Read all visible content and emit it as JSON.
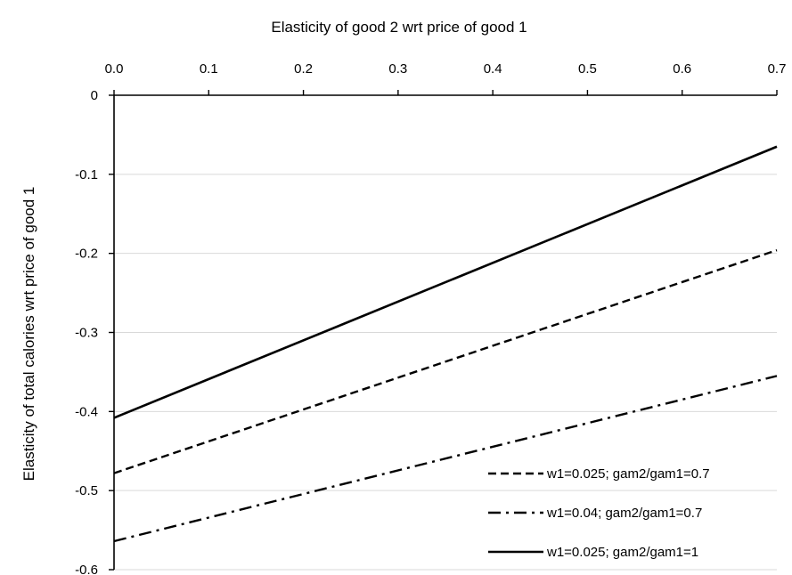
{
  "chart_data": {
    "type": "line",
    "title": "",
    "xlabel": "Elasticity of good 2 wrt price of good 1",
    "ylabel": "Elasticity of total calories wrt price of good 1",
    "x_axis_position": "top",
    "xlim": [
      0.0,
      0.7
    ],
    "ylim": [
      -0.6,
      0.0
    ],
    "x_ticks": [
      "0.0",
      "0.1",
      "0.2",
      "0.3",
      "0.4",
      "0.5",
      "0.6",
      "0.7"
    ],
    "y_ticks": [
      "0",
      "-0.1",
      "-0.2",
      "-0.3",
      "-0.4",
      "-0.5",
      "-0.6"
    ],
    "grid": "horizontal",
    "legend_position": "bottom-right",
    "x": [
      0.0,
      0.7
    ],
    "series": [
      {
        "name": "w1=0.025; gam2/gam1=0.7",
        "style": "dashed",
        "color": "#000000",
        "values": [
          -0.478,
          -0.196
        ]
      },
      {
        "name": "w1=0.04; gam2/gam1=0.7",
        "style": "dash-dot",
        "color": "#000000",
        "values": [
          -0.564,
          -0.355
        ]
      },
      {
        "name": "w1=0.025; gam2/gam1=1",
        "style": "solid",
        "color": "#000000",
        "values": [
          -0.408,
          -0.065
        ]
      }
    ]
  }
}
